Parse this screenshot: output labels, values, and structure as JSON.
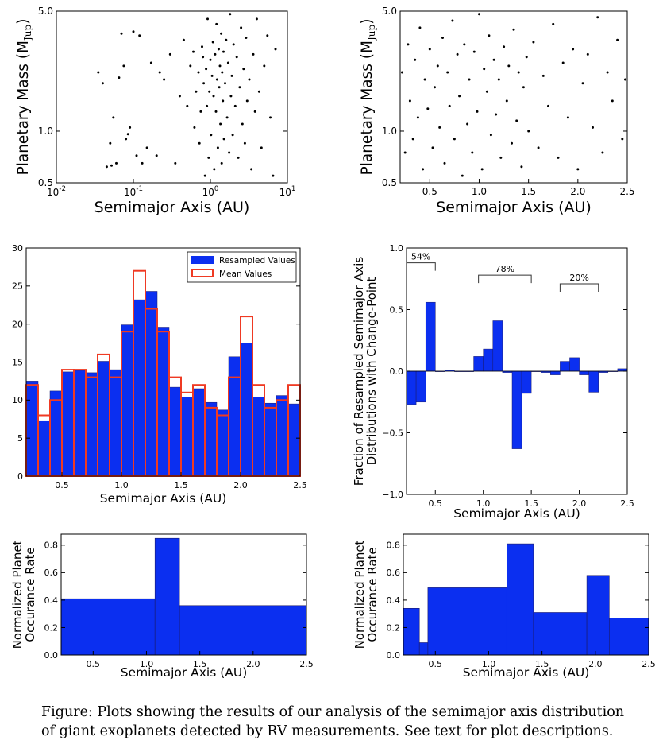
{
  "caption": {
    "line1": "Figure: Plots showing the results of our analysis of the semimajor axis distribution",
    "line2": "of giant exoplanets detected by RV measurements. See text for plot descriptions."
  },
  "colors": {
    "bar": "#0b2ff0",
    "mean": "#ef3a23",
    "axis": "#000000",
    "point": "#000000"
  },
  "chart_data": [
    {
      "id": "scatter_log",
      "type": "scatter",
      "xscale": "log",
      "yscale": "log",
      "xlim": [
        0.01,
        10
      ],
      "ylim": [
        0.5,
        5.0
      ],
      "xlabel": "Semimajor Axis (AU)",
      "ylabel": "Planetary Mass (M",
      "ylabel_sub": "Jup",
      "ylabel_close": ")",
      "xticks": [
        {
          "value": 0.01,
          "base": "10",
          "exp": "-2"
        },
        {
          "value": 0.1,
          "base": "10",
          "exp": "-1"
        },
        {
          "value": 1,
          "base": "10",
          "exp": "0"
        },
        {
          "value": 10,
          "base": "10",
          "exp": "1"
        }
      ],
      "yticks": [
        {
          "value": 0.5,
          "label": "0.5"
        },
        {
          "value": 1.0,
          "label": "1.0"
        },
        {
          "value": 5.0,
          "label": "5.0"
        }
      ],
      "points": [
        [
          0.035,
          2.2
        ],
        [
          0.04,
          1.9
        ],
        [
          0.045,
          0.62
        ],
        [
          0.05,
          0.85
        ],
        [
          0.052,
          0.63
        ],
        [
          0.055,
          1.2
        ],
        [
          0.06,
          0.65
        ],
        [
          0.065,
          2.05
        ],
        [
          0.07,
          3.7
        ],
        [
          0.075,
          2.4
        ],
        [
          0.08,
          0.9
        ],
        [
          0.085,
          0.96
        ],
        [
          0.09,
          1.05
        ],
        [
          0.1,
          3.8
        ],
        [
          0.11,
          0.72
        ],
        [
          0.12,
          3.6
        ],
        [
          0.13,
          0.65
        ],
        [
          0.15,
          0.8
        ],
        [
          0.17,
          2.5
        ],
        [
          0.2,
          0.72
        ],
        [
          0.22,
          2.2
        ],
        [
          0.25,
          2.0
        ],
        [
          0.3,
          2.8
        ],
        [
          0.35,
          0.65
        ],
        [
          0.4,
          1.6
        ],
        [
          0.45,
          3.4
        ],
        [
          0.5,
          1.4
        ],
        [
          0.55,
          2.4
        ],
        [
          0.6,
          2.9
        ],
        [
          0.62,
          1.05
        ],
        [
          0.65,
          1.7
        ],
        [
          0.7,
          2.2
        ],
        [
          0.72,
          0.85
        ],
        [
          0.75,
          1.3
        ],
        [
          0.78,
          3.1
        ],
        [
          0.8,
          2.7
        ],
        [
          0.82,
          1.9
        ],
        [
          0.85,
          0.55
        ],
        [
          0.88,
          2.3
        ],
        [
          0.9,
          1.4
        ],
        [
          0.92,
          4.5
        ],
        [
          0.95,
          0.7
        ],
        [
          0.97,
          1.7
        ],
        [
          1.0,
          2.6
        ],
        [
          1.02,
          0.95
        ],
        [
          1.05,
          2.1
        ],
        [
          1.08,
          3.3
        ],
        [
          1.1,
          1.6
        ],
        [
          1.12,
          0.6
        ],
        [
          1.15,
          2.8
        ],
        [
          1.18,
          1.3
        ],
        [
          1.2,
          4.2
        ],
        [
          1.22,
          2.0
        ],
        [
          1.25,
          0.8
        ],
        [
          1.28,
          3.0
        ],
        [
          1.3,
          1.8
        ],
        [
          1.33,
          2.4
        ],
        [
          1.35,
          1.1
        ],
        [
          1.38,
          3.7
        ],
        [
          1.4,
          0.65
        ],
        [
          1.42,
          2.2
        ],
        [
          1.45,
          1.5
        ],
        [
          1.48,
          2.9
        ],
        [
          1.5,
          0.9
        ],
        [
          1.55,
          1.9
        ],
        [
          1.6,
          3.4
        ],
        [
          1.65,
          1.2
        ],
        [
          1.7,
          2.5
        ],
        [
          1.75,
          0.75
        ],
        [
          1.8,
          4.8
        ],
        [
          1.85,
          1.6
        ],
        [
          1.9,
          2.1
        ],
        [
          1.95,
          0.95
        ],
        [
          2.0,
          3.2
        ],
        [
          2.1,
          1.4
        ],
        [
          2.2,
          2.7
        ],
        [
          2.3,
          0.7
        ],
        [
          2.4,
          1.8
        ],
        [
          2.5,
          4.0
        ],
        [
          2.6,
          1.1
        ],
        [
          2.7,
          2.3
        ],
        [
          2.8,
          0.85
        ],
        [
          2.9,
          3.5
        ],
        [
          3.0,
          1.5
        ],
        [
          3.2,
          2.0
        ],
        [
          3.4,
          0.6
        ],
        [
          3.6,
          2.8
        ],
        [
          3.8,
          1.3
        ],
        [
          4.0,
          4.5
        ],
        [
          4.3,
          1.7
        ],
        [
          4.6,
          0.8
        ],
        [
          5.0,
          2.4
        ],
        [
          5.5,
          3.6
        ],
        [
          6.0,
          1.2
        ],
        [
          6.5,
          0.55
        ],
        [
          7.0,
          3.0
        ]
      ]
    },
    {
      "id": "scatter_lin",
      "type": "scatter",
      "xscale": "linear",
      "yscale": "log",
      "xlim": [
        0.2,
        2.5
      ],
      "ylim": [
        0.5,
        5.0
      ],
      "xlabel": "Semimajor Axis (AU)",
      "ylabel": "Planetary Mass (M",
      "ylabel_sub": "Jup",
      "ylabel_close": ")",
      "xticks": [
        {
          "value": 0.5,
          "label": "0.5"
        },
        {
          "value": 1.0,
          "label": "1.0"
        },
        {
          "value": 1.5,
          "label": "1.5"
        },
        {
          "value": 2.0,
          "label": "2.0"
        },
        {
          "value": 2.5,
          "label": "2.5"
        }
      ],
      "yticks": [
        {
          "value": 0.5,
          "label": "0.5"
        },
        {
          "value": 1.0,
          "label": "1.0"
        },
        {
          "value": 5.0,
          "label": "5.0"
        }
      ],
      "points": [
        [
          0.22,
          2.2
        ],
        [
          0.25,
          0.75
        ],
        [
          0.28,
          3.2
        ],
        [
          0.3,
          1.5
        ],
        [
          0.33,
          0.9
        ],
        [
          0.35,
          2.6
        ],
        [
          0.38,
          1.2
        ],
        [
          0.4,
          4.0
        ],
        [
          0.43,
          0.6
        ],
        [
          0.45,
          2.0
        ],
        [
          0.48,
          1.35
        ],
        [
          0.5,
          3.0
        ],
        [
          0.53,
          0.8
        ],
        [
          0.55,
          1.8
        ],
        [
          0.58,
          2.4
        ],
        [
          0.6,
          1.05
        ],
        [
          0.63,
          3.5
        ],
        [
          0.65,
          0.65
        ],
        [
          0.68,
          2.2
        ],
        [
          0.7,
          1.4
        ],
        [
          0.73,
          4.4
        ],
        [
          0.75,
          0.9
        ],
        [
          0.78,
          2.8
        ],
        [
          0.8,
          1.6
        ],
        [
          0.83,
          0.55
        ],
        [
          0.85,
          3.2
        ],
        [
          0.88,
          1.1
        ],
        [
          0.9,
          2.0
        ],
        [
          0.93,
          0.75
        ],
        [
          0.95,
          2.9
        ],
        [
          0.98,
          1.3
        ],
        [
          1.0,
          4.8
        ],
        [
          1.03,
          0.6
        ],
        [
          1.05,
          2.3
        ],
        [
          1.08,
          1.7
        ],
        [
          1.1,
          3.6
        ],
        [
          1.12,
          0.95
        ],
        [
          1.15,
          2.6
        ],
        [
          1.17,
          1.25
        ],
        [
          1.2,
          2.0
        ],
        [
          1.22,
          0.7
        ],
        [
          1.25,
          3.1
        ],
        [
          1.28,
          1.5
        ],
        [
          1.3,
          2.4
        ],
        [
          1.33,
          0.85
        ],
        [
          1.35,
          3.9
        ],
        [
          1.38,
          1.15
        ],
        [
          1.4,
          2.2
        ],
        [
          1.43,
          0.62
        ],
        [
          1.45,
          1.8
        ],
        [
          1.48,
          2.7
        ],
        [
          1.5,
          1.0
        ],
        [
          1.55,
          3.3
        ],
        [
          1.6,
          0.8
        ],
        [
          1.65,
          2.1
        ],
        [
          1.7,
          1.4
        ],
        [
          1.75,
          4.2
        ],
        [
          1.8,
          0.7
        ],
        [
          1.85,
          2.5
        ],
        [
          1.9,
          1.2
        ],
        [
          1.95,
          3.0
        ],
        [
          2.0,
          0.6
        ],
        [
          2.05,
          1.9
        ],
        [
          2.1,
          2.8
        ],
        [
          2.15,
          1.05
        ],
        [
          2.2,
          4.6
        ],
        [
          2.25,
          0.75
        ],
        [
          2.3,
          2.2
        ],
        [
          2.35,
          1.5
        ],
        [
          2.4,
          3.4
        ],
        [
          2.45,
          0.9
        ],
        [
          2.48,
          2.0
        ]
      ]
    },
    {
      "id": "histogram",
      "type": "bar",
      "xlim": [
        0.2,
        2.5
      ],
      "ylim": [
        0,
        30
      ],
      "xlabel": "Semimajor Axis (AU)",
      "ylabel": "",
      "xticks": [
        {
          "value": 0.5,
          "label": "0.5"
        },
        {
          "value": 1.0,
          "label": "1.0"
        },
        {
          "value": 1.5,
          "label": "1.5"
        },
        {
          "value": 2.0,
          "label": "2.0"
        },
        {
          "value": 2.5,
          "label": "2.5"
        }
      ],
      "yticks": [
        {
          "value": 0,
          "label": "0"
        },
        {
          "value": 5,
          "label": "5"
        },
        {
          "value": 10,
          "label": "10"
        },
        {
          "value": 15,
          "label": "15"
        },
        {
          "value": 20,
          "label": "20"
        },
        {
          "value": 25,
          "label": "25"
        },
        {
          "value": 30,
          "label": "30"
        }
      ],
      "bin_edges": [
        0.2,
        0.3,
        0.4,
        0.5,
        0.6,
        0.7,
        0.8,
        0.9,
        1.0,
        1.1,
        1.2,
        1.3,
        1.4,
        1.5,
        1.6,
        1.7,
        1.8,
        1.9,
        2.0,
        2.1,
        2.2,
        2.3,
        2.4,
        2.5
      ],
      "series": [
        {
          "name": "Resampled Values",
          "style": "filled",
          "values": [
            12.5,
            7.3,
            11.2,
            13.7,
            13.9,
            13.6,
            15.1,
            14.0,
            19.9,
            23.2,
            24.3,
            19.6,
            11.7,
            10.4,
            11.5,
            9.7,
            8.7,
            15.7,
            17.5,
            10.4,
            9.6,
            10.6,
            9.5
          ]
        },
        {
          "name": "Mean Values",
          "style": "outline",
          "values": [
            12,
            8,
            10,
            14,
            14,
            13,
            16,
            13,
            19,
            27,
            22,
            19,
            13,
            11,
            12,
            9,
            8,
            13,
            21,
            12,
            9,
            10,
            12
          ]
        }
      ],
      "legend": "top-right"
    },
    {
      "id": "change_point",
      "type": "bar",
      "xlim": [
        0.2,
        2.5
      ],
      "ylim": [
        -1.0,
        1.0
      ],
      "xlabel": "Semimajor Axis (AU)",
      "ylabel_line1": "Fraction of Resampled Semimajor Axis",
      "ylabel_line2": "Distributions with Change-Point",
      "xticks": [
        {
          "value": 0.5,
          "label": "0.5"
        },
        {
          "value": 1.0,
          "label": "1.0"
        },
        {
          "value": 1.5,
          "label": "1.5"
        },
        {
          "value": 2.0,
          "label": "2.0"
        },
        {
          "value": 2.5,
          "label": "2.5"
        }
      ],
      "yticks": [
        {
          "value": -1.0,
          "label": "−1.0"
        },
        {
          "value": -0.5,
          "label": "−0.5"
        },
        {
          "value": 0.0,
          "label": "0.0"
        },
        {
          "value": 0.5,
          "label": "0.5"
        },
        {
          "value": 1.0,
          "label": "1.0"
        }
      ],
      "bin_edges": [
        0.2,
        0.3,
        0.4,
        0.5,
        0.6,
        0.7,
        0.8,
        0.9,
        1.0,
        1.1,
        1.2,
        1.3,
        1.4,
        1.5,
        1.6,
        1.7,
        1.8,
        1.9,
        2.0,
        2.1,
        2.2,
        2.3,
        2.4,
        2.5
      ],
      "values": [
        -0.27,
        -0.25,
        0.56,
        0.0,
        0.01,
        0.0,
        0.0,
        0.12,
        0.18,
        0.41,
        -0.01,
        -0.63,
        -0.18,
        0.0,
        -0.01,
        -0.03,
        0.08,
        0.11,
        -0.03,
        -0.17,
        -0.01,
        0.0,
        0.02
      ],
      "annotations": [
        {
          "label": "54%",
          "x0": 0.2,
          "x1": 0.5,
          "y": 0.88
        },
        {
          "label": "78%",
          "x0": 0.95,
          "x1": 1.5,
          "y": 0.78
        },
        {
          "label": "20%",
          "x0": 1.8,
          "x1": 2.2,
          "y": 0.71
        }
      ]
    },
    {
      "id": "rate_left",
      "type": "bar",
      "xlim": [
        0.2,
        2.5
      ],
      "ylim": [
        0,
        0.88
      ],
      "xlabel": "Semimajor Axis (AU)",
      "ylabel_line1": "Normalized Planet",
      "ylabel_line2": "Occurance Rate",
      "xticks": [
        {
          "value": 0.5,
          "label": "0.5"
        },
        {
          "value": 1.0,
          "label": "1.0"
        },
        {
          "value": 1.5,
          "label": "1.5"
        },
        {
          "value": 2.0,
          "label": "2.0"
        },
        {
          "value": 2.5,
          "label": "2.5"
        }
      ],
      "yticks": [
        {
          "value": 0.0,
          "label": "0.0"
        },
        {
          "value": 0.2,
          "label": "0.2"
        },
        {
          "value": 0.4,
          "label": "0.4"
        },
        {
          "value": 0.6,
          "label": "0.6"
        },
        {
          "value": 0.8,
          "label": "0.8"
        }
      ],
      "bin_edges": [
        0.2,
        1.08,
        1.31,
        2.5
      ],
      "values": [
        0.41,
        0.85,
        0.36
      ]
    },
    {
      "id": "rate_right",
      "type": "bar",
      "xlim": [
        0.2,
        2.5
      ],
      "ylim": [
        0,
        0.88
      ],
      "xlabel": "Semimajor Axis (AU)",
      "ylabel_line1": "Normalized Planet",
      "ylabel_line2": "Occurance Rate",
      "xticks": [
        {
          "value": 0.5,
          "label": "0.5"
        },
        {
          "value": 1.0,
          "label": "1.0"
        },
        {
          "value": 1.5,
          "label": "1.5"
        },
        {
          "value": 2.0,
          "label": "2.0"
        },
        {
          "value": 2.5,
          "label": "2.5"
        }
      ],
      "yticks": [
        {
          "value": 0.0,
          "label": "0.0"
        },
        {
          "value": 0.2,
          "label": "0.2"
        },
        {
          "value": 0.4,
          "label": "0.4"
        },
        {
          "value": 0.6,
          "label": "0.6"
        },
        {
          "value": 0.8,
          "label": "0.8"
        }
      ],
      "bin_edges": [
        0.2,
        0.35,
        0.43,
        1.17,
        1.42,
        1.92,
        2.13,
        2.5
      ],
      "values": [
        0.34,
        0.09,
        0.49,
        0.81,
        0.31,
        0.58,
        0.27
      ]
    }
  ]
}
